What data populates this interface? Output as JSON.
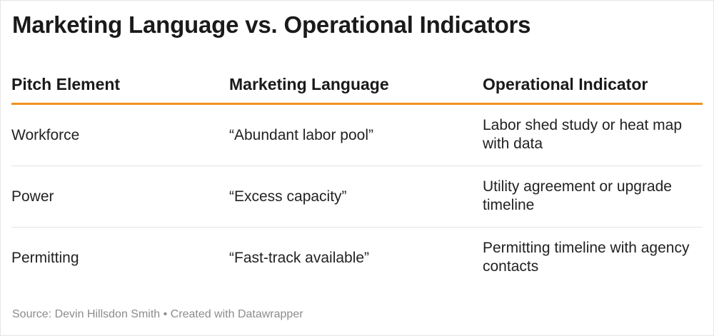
{
  "title": "Marketing Language vs. Operational Indicators",
  "chart_data": {
    "type": "table",
    "columns": [
      "Pitch Element",
      "Marketing Language",
      "Operational Indicator"
    ],
    "rows": [
      [
        "Workforce",
        "“Abundant labor pool”",
        "Labor shed study or heat map with data"
      ],
      [
        "Power",
        "“Excess capacity”",
        "Utility agreement or upgrade timeline"
      ],
      [
        "Permitting",
        "“Fast-track available”",
        "Permitting timeline with agency contacts"
      ]
    ],
    "header_rule_color": "#f0921d"
  },
  "footer": {
    "source": "Source: Devin Hillsdon Smith • Created with Datawrapper"
  }
}
